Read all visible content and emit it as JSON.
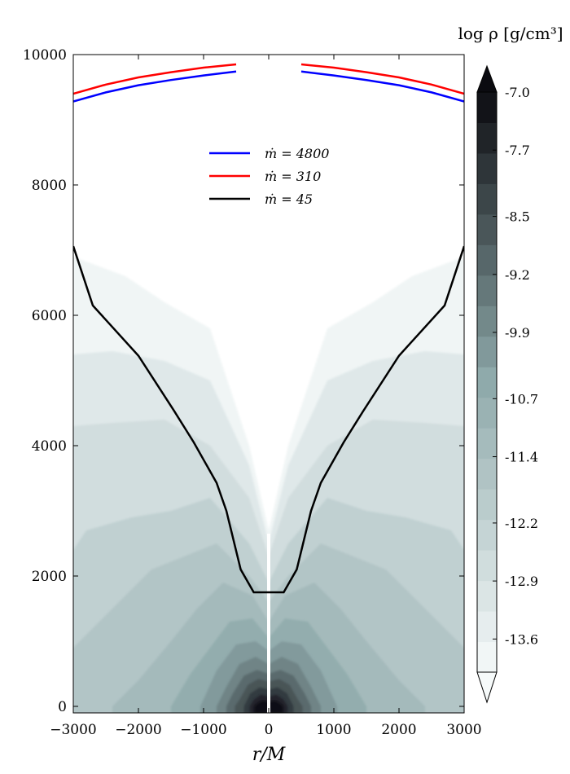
{
  "chart_data": {
    "type": "contour",
    "xlabel": "r/M",
    "ylabel": "",
    "xlim": [
      -3000,
      3000
    ],
    "ylim": [
      -100,
      10000
    ],
    "x_ticks": [
      "−3000",
      "−2000",
      "−1000",
      "0",
      "1000",
      "2000",
      "3000"
    ],
    "x_tick_values": [
      -3000,
      -2000,
      -1000,
      0,
      1000,
      2000,
      3000
    ],
    "y_ticks": [
      "0",
      "2000",
      "4000",
      "6000",
      "8000",
      "10000"
    ],
    "y_tick_values": [
      0,
      2000,
      4000,
      6000,
      8000,
      10000
    ],
    "colorbar": {
      "label": "log ρ [g/cm³]",
      "range": [
        -14.0,
        -7.0
      ],
      "ticks": [
        "-7.0",
        "-7.7",
        "-8.5",
        "-9.2",
        "-9.9",
        "-10.7",
        "-11.4",
        "-12.2",
        "-12.9",
        "-13.6"
      ],
      "tick_values": [
        -7.0,
        -7.7,
        -8.5,
        -9.2,
        -9.9,
        -10.7,
        -11.4,
        -12.2,
        -12.9,
        -13.6
      ],
      "levels": 19,
      "color_low": "#f6fafa",
      "color_mid": "#8faaab",
      "color_high": "#0b0b10",
      "extend": "both"
    },
    "legend": {
      "placement": "upper-center"
    },
    "series": [
      {
        "name": "ṁ = 4800",
        "color": "#0000ff",
        "x": [
          -3000,
          -2500,
          -2000,
          -1500,
          -1000,
          -500,
          500,
          1000,
          1500,
          2000,
          2500,
          3000
        ],
        "y": [
          9280,
          9420,
          9530,
          9610,
          9680,
          9740,
          9740,
          9680,
          9610,
          9530,
          9420,
          9280
        ]
      },
      {
        "name": "ṁ = 310",
        "color": "#ff0000",
        "x": [
          -3000,
          -2500,
          -2000,
          -1500,
          -1000,
          -500,
          500,
          1000,
          1500,
          2000,
          2500,
          3000
        ],
        "y": [
          9400,
          9540,
          9650,
          9730,
          9800,
          9850,
          9850,
          9800,
          9730,
          9650,
          9540,
          9400
        ]
      },
      {
        "name": "ṁ = 45",
        "color": "#000000",
        "x": [
          -3000,
          -2700,
          -2000,
          -1450,
          -1150,
          -800,
          -650,
          -430,
          -230,
          -100,
          100,
          230,
          430,
          650,
          800,
          1150,
          1450,
          2000,
          2700,
          3000
        ],
        "y": [
          7060,
          6150,
          5380,
          4530,
          4050,
          3430,
          3000,
          2100,
          1750,
          1750,
          1750,
          1750,
          2100,
          3000,
          3430,
          4050,
          4530,
          5380,
          6150,
          7060
        ]
      }
    ]
  }
}
